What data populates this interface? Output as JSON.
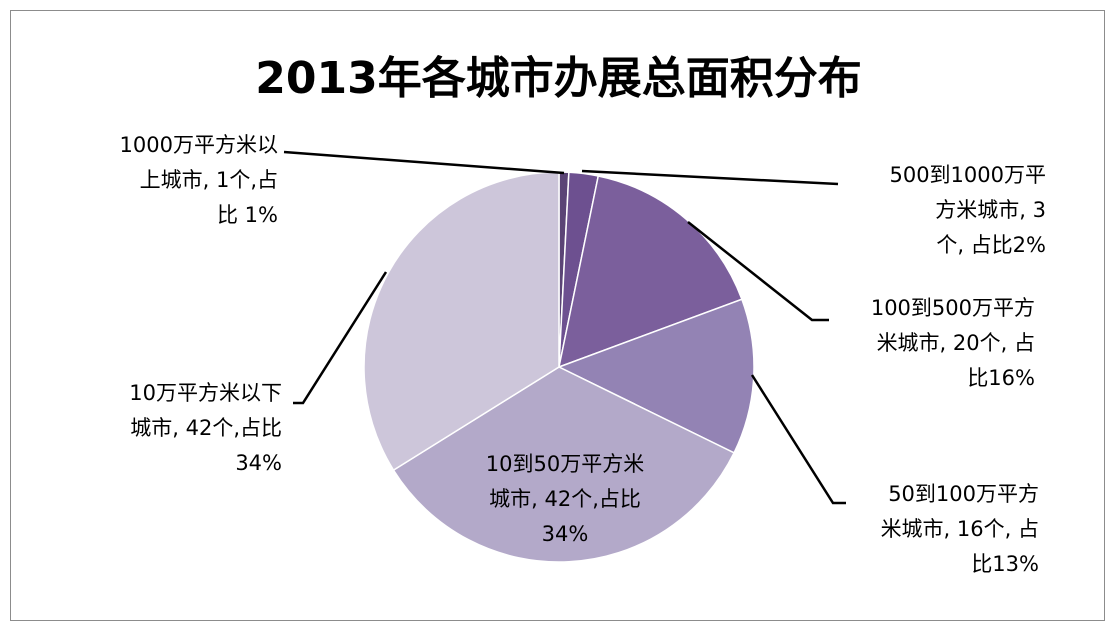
{
  "chart_data": {
    "type": "pie",
    "title": "2013年各城市办展总面积分布",
    "start_angle_deg": 0,
    "direction": "clockwise",
    "slices": [
      {
        "category": "1000万平方米以上城市",
        "count": 1,
        "percent": 1,
        "color": "#5b4476",
        "label": "1000万平方米以\n上城市, 1个,占\n比 1%"
      },
      {
        "category": "500到1000万平方米城市",
        "count": 3,
        "percent": 2,
        "color": "#6d5090",
        "label": "500到1000万平\n方米城市, 3\n个, 占比2%"
      },
      {
        "category": "100到500万平方米城市",
        "count": 20,
        "percent": 16,
        "color": "#7b5f9c",
        "label": "100到500万平方\n米城市, 20个, 占\n比16%"
      },
      {
        "category": "50到100万平方米城市",
        "count": 16,
        "percent": 13,
        "color": "#9383b4",
        "label": "50到100万平方\n米城市, 16个, 占\n比13%"
      },
      {
        "category": "10到50万平方米城市",
        "count": 42,
        "percent": 34,
        "color": "#b3a9c9",
        "label": "10到50万平方米\n城市, 42个,占比\n34%"
      },
      {
        "category": "10万平方米以下城市",
        "count": 42,
        "percent": 34,
        "color": "#cdc6da",
        "label": "10万平方米以下\n城市, 42个,占比\n34%"
      }
    ]
  }
}
